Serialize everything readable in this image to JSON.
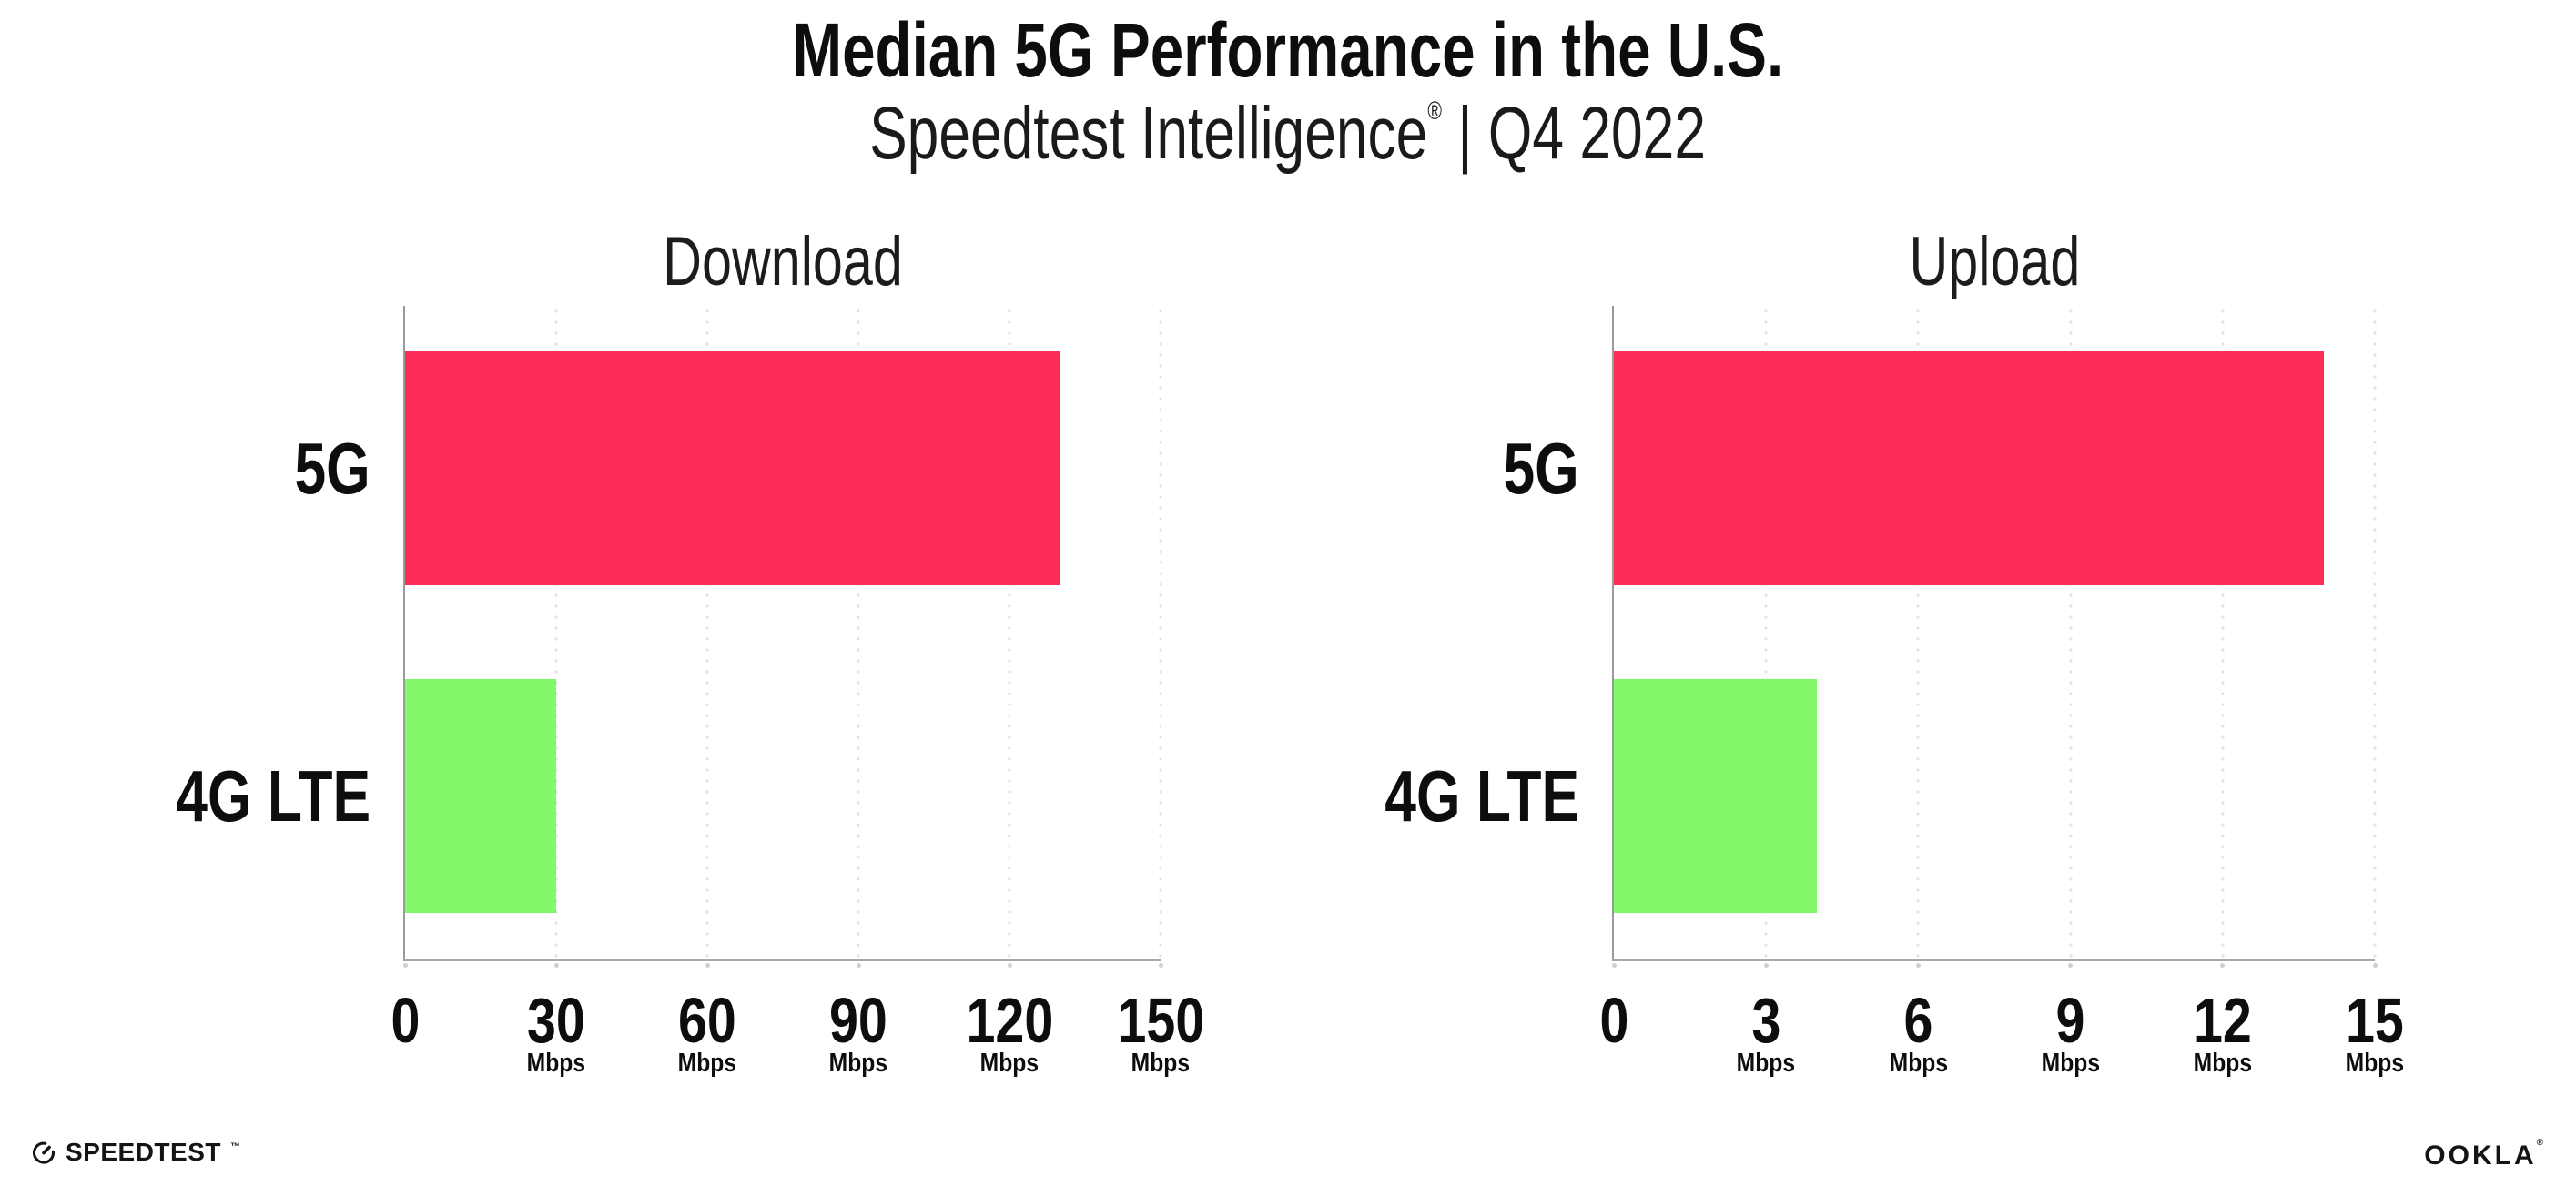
{
  "header": {
    "title": "Median 5G Performance in the U.S.",
    "subtitle_brand": "Speedtest Intelligence",
    "subtitle_reg": "®",
    "subtitle_rest": "| Q4 2022"
  },
  "colors": {
    "bar_5g": "#FC2E58",
    "bar_4g_lte": "#81F96B",
    "axis": "#9A9A9A",
    "grid_dot": "#E2E2EA",
    "text": "#111111"
  },
  "chart_data": [
    {
      "type": "bar",
      "orientation": "horizontal",
      "title": "Download",
      "categories": [
        "5G",
        "4G LTE"
      ],
      "values": [
        130,
        30
      ],
      "unit": "Mbps",
      "xlim": [
        0,
        150
      ],
      "ticks": [
        0,
        30,
        60,
        90,
        120,
        150
      ],
      "grid": "dotted-vertical",
      "legend": "none",
      "bar_colors": [
        "#FC2E58",
        "#81F96B"
      ]
    },
    {
      "type": "bar",
      "orientation": "horizontal",
      "title": "Upload",
      "categories": [
        "5G",
        "4G LTE"
      ],
      "values": [
        14,
        4
      ],
      "unit": "Mbps",
      "xlim": [
        0,
        15
      ],
      "ticks": [
        0,
        3,
        6,
        9,
        12,
        15
      ],
      "grid": "dotted-vertical",
      "legend": "none",
      "bar_colors": [
        "#FC2E58",
        "#81F96B"
      ]
    }
  ],
  "footer": {
    "speedtest_label": "SPEEDTEST",
    "speedtest_tm": "™",
    "ookla_label": "OOKLA",
    "ookla_reg": "®"
  }
}
